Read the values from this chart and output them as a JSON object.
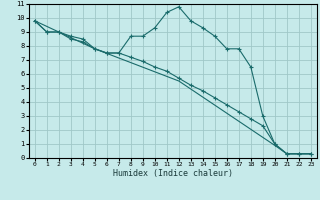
{
  "xlabel": "Humidex (Indice chaleur)",
  "bg_color": "#c6eaea",
  "grid_color": "#a0c8c8",
  "line_color": "#1a6b6b",
  "xlim": [
    -0.5,
    23.5
  ],
  "ylim": [
    0,
    11
  ],
  "xticks": [
    0,
    1,
    2,
    3,
    4,
    5,
    6,
    7,
    8,
    9,
    10,
    11,
    12,
    13,
    14,
    15,
    16,
    17,
    18,
    19,
    20,
    21,
    22,
    23
  ],
  "yticks": [
    0,
    1,
    2,
    3,
    4,
    5,
    6,
    7,
    8,
    9,
    10,
    11
  ],
  "s1_x": [
    0,
    1,
    2,
    3,
    4,
    5,
    6,
    7,
    8,
    9,
    10,
    11,
    12,
    13,
    14,
    15,
    16,
    17,
    18,
    19,
    20,
    21,
    22,
    23
  ],
  "s1_y": [
    9.8,
    9.0,
    9.0,
    8.7,
    8.5,
    7.8,
    7.5,
    7.5,
    8.7,
    8.7,
    9.3,
    10.4,
    10.8,
    9.8,
    9.3,
    8.7,
    7.8,
    7.8,
    6.5,
    3.0,
    1.0,
    0.3,
    0.3,
    0.3
  ],
  "s2_x": [
    0,
    1,
    2,
    3,
    4,
    5,
    6,
    7,
    8,
    9,
    10,
    11,
    12,
    13,
    14,
    15,
    16,
    17,
    18,
    19,
    20,
    21,
    22,
    23
  ],
  "s2_y": [
    9.8,
    9.0,
    9.0,
    8.5,
    8.3,
    7.8,
    7.5,
    7.5,
    7.2,
    6.9,
    6.5,
    6.2,
    5.7,
    5.2,
    4.8,
    4.3,
    3.8,
    3.3,
    2.8,
    2.3,
    1.0,
    0.3,
    0.3,
    0.3
  ],
  "s3_x": [
    0,
    2,
    5,
    12,
    20,
    21,
    22,
    23
  ],
  "s3_y": [
    9.8,
    9.0,
    7.8,
    5.5,
    0.9,
    0.3,
    0.3,
    0.3
  ]
}
